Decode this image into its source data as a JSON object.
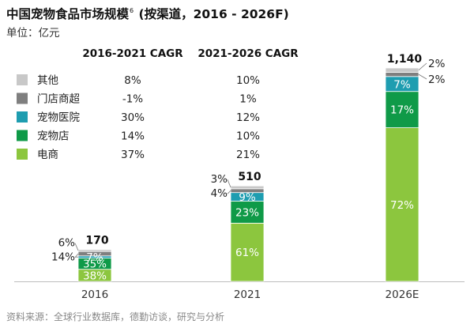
{
  "title": "中国宠物食品市场规模",
  "title_superscript": "6",
  "title_suffix": " (按渠道，2016 - 2026F)",
  "unit_label": "单位：亿元",
  "source": "资料来源：全球行业数据库，德勤访谈，研究与分析",
  "legend_headers": [
    "2016-2021 CAGR",
    "2021-2026 CAGR"
  ],
  "colors": {
    "其他": "#c8c8c8",
    "门店商超": "#7f7f7f",
    "宠物医院": "#1e9db0",
    "宠物店": "#0f9a48",
    "电商": "#8cc63e"
  },
  "chart_data": {
    "type": "bar",
    "stacked": true,
    "unit": "亿元",
    "categories": [
      "2016",
      "2021",
      "2026E"
    ],
    "totals": [
      170,
      510,
      1140
    ],
    "total_labels": [
      "170",
      "510",
      "1,140"
    ],
    "series": [
      {
        "name": "电商",
        "share_pct": [
          38,
          61,
          72
        ],
        "labels": [
          "38%",
          "61%",
          "72%"
        ],
        "cagr_2016_2021": "37%",
        "cagr_2021_2026": "21%"
      },
      {
        "name": "宠物店",
        "share_pct": [
          35,
          23,
          17
        ],
        "labels": [
          "35%",
          "23%",
          "17%"
        ],
        "cagr_2016_2021": "14%",
        "cagr_2021_2026": "10%"
      },
      {
        "name": "宠物医院",
        "share_pct": [
          7,
          9,
          7
        ],
        "labels": [
          "7%",
          "9%",
          "7%"
        ],
        "cagr_2016_2021": "30%",
        "cagr_2021_2026": "12%"
      },
      {
        "name": "门店商超",
        "share_pct": [
          14,
          4,
          2
        ],
        "labels": [
          "14%",
          "4%",
          "2%"
        ],
        "cagr_2016_2021": "-1%",
        "cagr_2021_2026": "1%"
      },
      {
        "name": "其他",
        "share_pct": [
          6,
          3,
          2
        ],
        "labels": [
          "6%",
          "3%",
          "2%"
        ],
        "cagr_2016_2021": "8%",
        "cagr_2021_2026": "10%"
      }
    ],
    "legend_order": [
      "其他",
      "门店商超",
      "宠物医院",
      "宠物店",
      "电商"
    ],
    "ylim": [
      0,
      1150
    ],
    "grid": false
  }
}
